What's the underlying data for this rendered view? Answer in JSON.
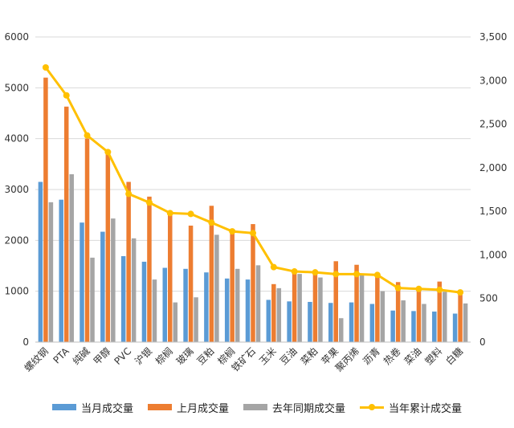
{
  "chart_data": {
    "type": "bar",
    "categories": [
      "螺纹钢",
      "PTA",
      "纯碱",
      "甲醇",
      "PVC",
      "沪银",
      "棕榈",
      "玻璃",
      "豆粕",
      "棕榈",
      "铁矿石",
      "玉米",
      "豆油",
      "菜粕",
      "苹果",
      "聚丙烯",
      "沥青",
      "热卷",
      "菜油",
      "塑料",
      "白糖"
    ],
    "series": [
      {
        "name": "当月成交量",
        "axis": "left",
        "color": "#5b9bd5",
        "values": [
          3150,
          2800,
          2350,
          2170,
          1690,
          1580,
          1460,
          1440,
          1370,
          1250,
          1230,
          830,
          800,
          790,
          770,
          780,
          750,
          620,
          610,
          600,
          560
        ]
      },
      {
        "name": "上月成交量",
        "axis": "left",
        "color": "#ed7d31",
        "values": [
          5200,
          4630,
          4000,
          3700,
          3150,
          2860,
          2540,
          2290,
          2680,
          2150,
          2320,
          1140,
          1380,
          1370,
          1590,
          1520,
          1350,
          1180,
          1090,
          1190,
          930
        ]
      },
      {
        "name": "去年同期成交量",
        "axis": "left",
        "color": "#a5a5a5",
        "values": [
          2750,
          3300,
          1660,
          2430,
          2040,
          1230,
          780,
          880,
          2110,
          1440,
          1510,
          1060,
          1340,
          1270,
          470,
          1310,
          1000,
          820,
          750,
          990,
          760
        ]
      },
      {
        "name": "当年累计成交量",
        "type": "line",
        "axis": "right",
        "color": "#ffc000",
        "values": [
          3150,
          2830,
          2370,
          2180,
          1700,
          1600,
          1480,
          1470,
          1370,
          1270,
          1250,
          860,
          810,
          800,
          780,
          780,
          770,
          620,
          610,
          600,
          570
        ]
      }
    ],
    "y_left": {
      "min": 0,
      "max": 6000,
      "step": 1000,
      "ticks": [
        "0",
        "1000",
        "2000",
        "3000",
        "4000",
        "5000",
        "6000"
      ]
    },
    "y_right": {
      "min": 0,
      "max": 3500,
      "step": 500,
      "ticks": [
        "0",
        "500",
        "1,000",
        "1,500",
        "2,000",
        "2,500",
        "3,000",
        "3,500"
      ]
    },
    "grid": true,
    "legend_position": "bottom"
  },
  "legend": [
    {
      "label": "当月成交量",
      "kind": "bar",
      "color": "#5b9bd5"
    },
    {
      "label": "上月成交量",
      "kind": "bar",
      "color": "#ed7d31"
    },
    {
      "label": "去年同期成交量",
      "kind": "bar",
      "color": "#a5a5a5"
    },
    {
      "label": "当年累计成交量",
      "kind": "line",
      "color": "#ffc000"
    }
  ]
}
